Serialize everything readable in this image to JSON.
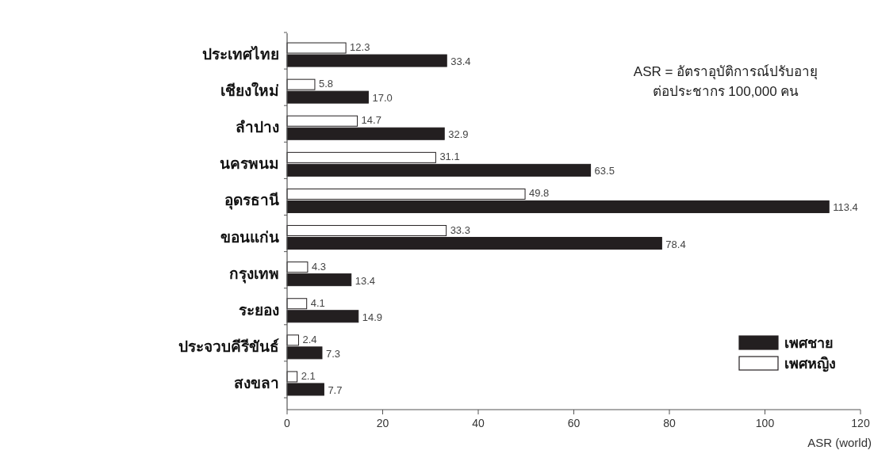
{
  "chart_data": {
    "type": "bar",
    "orientation": "horizontal",
    "xlabel": "ASR (world)",
    "categories": [
      "ประเทศไทย",
      "เชียงใหม่",
      "ลำปาง",
      "นครพนม",
      "อุดรธานี",
      "ขอนแก่น",
      "กรุงเทพ",
      "ระยอง",
      "ประจวบคีรีขันธ์",
      "สงขลา"
    ],
    "series": [
      {
        "name": "เพศชาย",
        "color": "#231f20",
        "values": [
          33.4,
          17.0,
          32.9,
          63.5,
          113.4,
          78.4,
          13.4,
          14.9,
          7.3,
          7.7
        ],
        "value_labels": [
          "33.4",
          "17.0",
          "32.9",
          "63.5",
          "113.4",
          "78.4",
          "13.4",
          "14.9",
          "7.3",
          "7.7"
        ]
      },
      {
        "name": "เพศหญิง",
        "color": "#ffffff",
        "values": [
          12.3,
          5.8,
          14.7,
          31.1,
          49.8,
          33.3,
          4.3,
          4.1,
          2.4,
          2.1
        ],
        "value_labels": [
          "12.3",
          "5.8",
          "14.7",
          "31.1",
          "49.8",
          "33.3",
          "4.3",
          "4.1",
          "2.4",
          "2.1"
        ]
      }
    ],
    "xlim": [
      0,
      120
    ],
    "xticks": [
      0,
      20,
      40,
      60,
      80,
      100,
      120
    ],
    "legend": "bottom right",
    "annotations": [
      "ASR = อัตราอุบัติการณ์ปรับอายุ",
      "ต่อประชากร 100,000 คน"
    ]
  }
}
